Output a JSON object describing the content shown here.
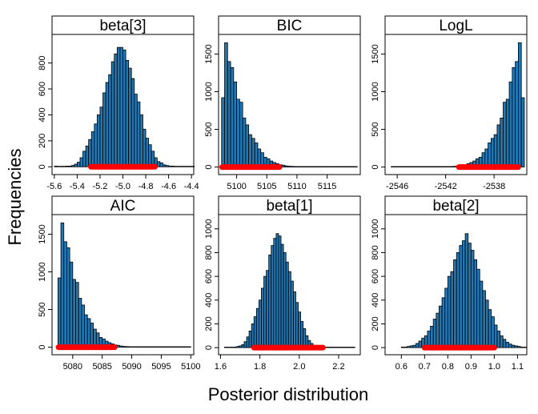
{
  "figure": {
    "ylabel": "Frequencies",
    "xlabel": "Posterior distribution"
  },
  "colors": {
    "bar_fill": "#1f77b4",
    "bar_stroke": "#000000",
    "interval": "#ff0000",
    "strip_fill": "#ffffff"
  },
  "chart_data": [
    {
      "type": "bar",
      "title": "beta[3]",
      "xlim": [
        -5.62,
        -4.38
      ],
      "xticks": [
        -5.6,
        -5.4,
        -5.2,
        -5.0,
        -4.8,
        -4.6,
        -4.4
      ],
      "xtick_labels": [
        "-5.6",
        "-5.4",
        "-5.2",
        "-5.0",
        "-4.8",
        "-4.6",
        "-4.4"
      ],
      "ylim": [
        -60,
        1020
      ],
      "yticks": [
        0,
        200,
        400,
        600,
        800
      ],
      "ytick_labels": [
        "0",
        "200",
        "400",
        "600",
        "800"
      ],
      "bin_start": -5.6,
      "bin_width": 0.025,
      "counts": [
        5,
        0,
        2,
        3,
        5,
        5,
        10,
        20,
        35,
        70,
        120,
        160,
        210,
        270,
        330,
        400,
        460,
        570,
        650,
        710,
        810,
        870,
        920,
        920,
        900,
        820,
        760,
        680,
        560,
        500,
        400,
        290,
        220,
        170,
        120,
        70,
        40,
        30,
        15,
        10,
        5,
        5,
        2,
        2,
        1,
        1,
        0,
        1,
        0
      ],
      "interval": [
        -5.28,
        -4.72
      ]
    },
    {
      "type": "bar",
      "title": "BIC",
      "xlim": [
        5097,
        5120.5
      ],
      "xticks": [
        5100,
        5105,
        5110,
        5115
      ],
      "xtick_labels": [
        "5100",
        "5105",
        "5110",
        "5115"
      ],
      "ylim": [
        -100,
        1760
      ],
      "yticks": [
        0,
        500,
        1000,
        1500
      ],
      "ytick_labels": [
        "0",
        "500",
        "1000",
        "1500"
      ],
      "bin_start": 5097.5,
      "bin_width": 0.5,
      "counts": [
        920,
        1650,
        1400,
        1320,
        1130,
        900,
        860,
        650,
        560,
        430,
        380,
        320,
        240,
        190,
        130,
        110,
        80,
        60,
        45,
        30,
        25,
        15,
        10,
        8,
        5,
        5,
        3,
        3,
        2,
        2,
        1,
        1,
        1,
        1,
        1,
        1,
        0,
        1,
        0,
        0,
        0,
        0,
        1,
        0,
        0
      ],
      "interval": [
        5097.6,
        5107.1
      ]
    },
    {
      "type": "bar",
      "title": "LogL",
      "xlim": [
        -2547,
        -2535.3
      ],
      "xticks": [
        -2546,
        -2542,
        -2538
      ],
      "xtick_labels": [
        "-2546",
        "-2542",
        "-2538"
      ],
      "ylim": [
        -100,
        1760
      ],
      "yticks": [
        0,
        500,
        1000,
        1500
      ],
      "ytick_labels": [
        "0",
        "500",
        "1000",
        "1500"
      ],
      "bin_start": -2546.5,
      "bin_width": 0.25,
      "counts": [
        0,
        0,
        0,
        1,
        0,
        0,
        0,
        1,
        0,
        1,
        0,
        1,
        1,
        1,
        2,
        2,
        3,
        3,
        5,
        5,
        8,
        10,
        15,
        25,
        30,
        45,
        60,
        80,
        110,
        130,
        190,
        240,
        320,
        380,
        430,
        560,
        650,
        860,
        900,
        1130,
        1320,
        1400,
        1650,
        920
      ],
      "interval": [
        -2540.9,
        -2536.0
      ]
    },
    {
      "type": "bar",
      "title": "AIC",
      "xlim": [
        5076.5,
        5100.5
      ],
      "xticks": [
        5080,
        5085,
        5090,
        5095,
        5100
      ],
      "xtick_labels": [
        "5080",
        "5085",
        "5090",
        "5095",
        "5100"
      ],
      "ylim": [
        -100,
        1760
      ],
      "yticks": [
        0,
        500,
        1000,
        1500
      ],
      "ytick_labels": [
        "0",
        "500",
        "1000",
        "1500"
      ],
      "bin_start": 5077.5,
      "bin_width": 0.5,
      "counts": [
        920,
        1650,
        1400,
        1320,
        1130,
        900,
        860,
        650,
        560,
        430,
        380,
        320,
        240,
        190,
        130,
        110,
        80,
        60,
        45,
        30,
        25,
        15,
        10,
        8,
        5,
        5,
        3,
        3,
        2,
        2,
        1,
        1,
        1,
        1,
        1,
        1,
        0,
        1,
        0,
        0,
        0,
        0,
        1,
        0,
        0
      ],
      "interval": [
        5077.6,
        5087.1
      ]
    },
    {
      "type": "bar",
      "title": "beta[1]",
      "xlim": [
        1.59,
        2.31
      ],
      "xticks": [
        1.6,
        1.8,
        2.0,
        2.2
      ],
      "xtick_labels": [
        "1.6",
        "1.8",
        "2.0",
        "2.2"
      ],
      "ylim": [
        -60,
        1120
      ],
      "yticks": [
        0,
        200,
        400,
        600,
        800,
        1000
      ],
      "ytick_labels": [
        "0",
        "200",
        "400",
        "600",
        "800",
        "1000"
      ],
      "bin_start": 1.62,
      "bin_width": 0.0125,
      "counts": [
        1,
        0,
        2,
        3,
        5,
        10,
        15,
        25,
        50,
        90,
        140,
        200,
        260,
        330,
        400,
        500,
        600,
        650,
        780,
        860,
        920,
        960,
        940,
        870,
        800,
        720,
        640,
        560,
        470,
        380,
        300,
        220,
        160,
        100,
        60,
        35,
        20,
        15,
        8,
        5,
        3,
        2,
        1,
        1,
        0,
        0,
        0,
        0,
        1,
        0,
        0,
        1,
        0
      ],
      "interval": [
        1.77,
        2.12
      ]
    },
    {
      "type": "bar",
      "title": "beta[2]",
      "xlim": [
        0.53,
        1.14
      ],
      "xticks": [
        0.6,
        0.7,
        0.8,
        0.9,
        1.0,
        1.1
      ],
      "xtick_labels": [
        "0.6",
        "0.7",
        "0.8",
        "0.9",
        "1.0",
        "1.1"
      ],
      "ylim": [
        -60,
        1120
      ],
      "yticks": [
        0,
        200,
        400,
        600,
        800,
        1000
      ],
      "ytick_labels": [
        "0",
        "200",
        "400",
        "600",
        "800",
        "1000"
      ],
      "bin_start": 0.6,
      "bin_width": 0.0125,
      "counts": [
        5,
        5,
        10,
        15,
        20,
        35,
        55,
        80,
        100,
        140,
        180,
        240,
        290,
        350,
        420,
        500,
        600,
        640,
        740,
        800,
        860,
        900,
        960,
        880,
        820,
        740,
        660,
        560,
        480,
        400,
        320,
        260,
        190,
        140,
        100,
        70,
        45,
        30,
        20,
        15,
        10,
        5,
        3
      ],
      "interval": [
        0.7,
        1.0
      ]
    }
  ]
}
